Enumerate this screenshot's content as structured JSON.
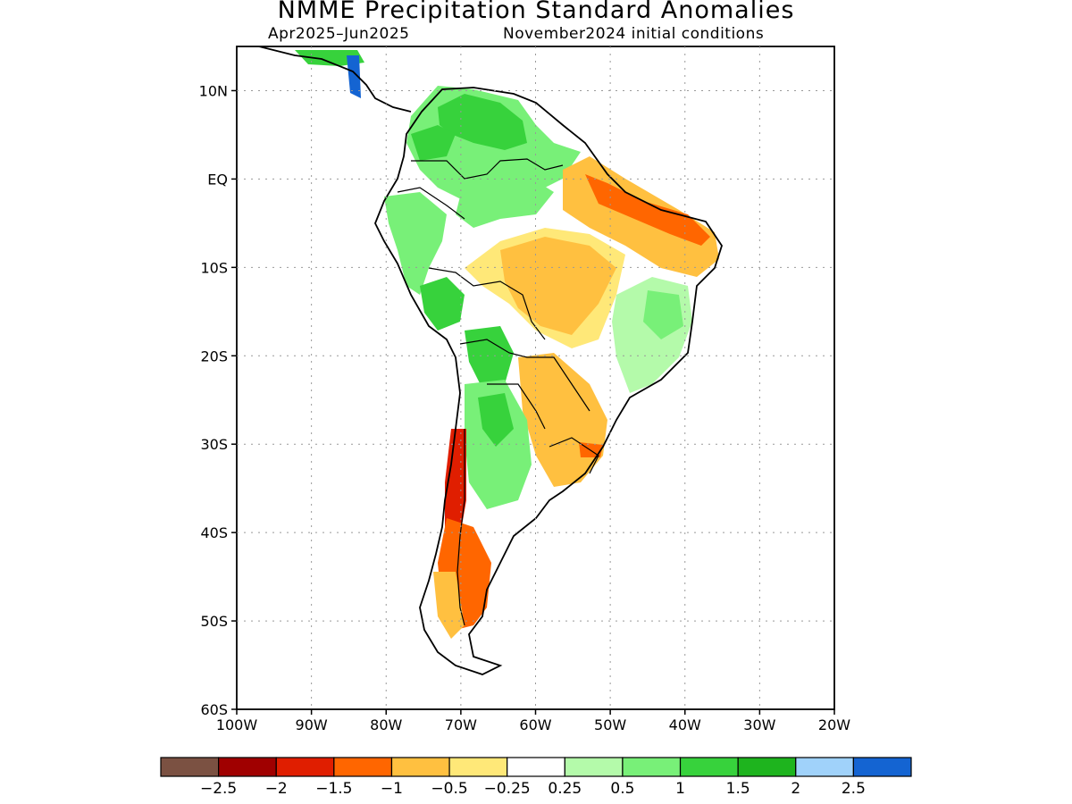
{
  "title": "NMME Precipitation Standard Anomalies",
  "subtitle_period": "Apr2025–Jun2025",
  "subtitle_ic": "November2024 initial conditions",
  "map": {
    "lon_range": [
      -100,
      -20
    ],
    "lat_range": [
      -60,
      15
    ],
    "lat_ticks": [
      {
        "value": 10,
        "label": "10N"
      },
      {
        "value": 0,
        "label": "EQ"
      },
      {
        "value": -10,
        "label": "10S"
      },
      {
        "value": -20,
        "label": "20S"
      },
      {
        "value": -30,
        "label": "30S"
      },
      {
        "value": -40,
        "label": "40S"
      },
      {
        "value": -50,
        "label": "50S"
      },
      {
        "value": -60,
        "label": "60S"
      }
    ],
    "lon_ticks": [
      {
        "value": -100,
        "label": "100W"
      },
      {
        "value": -90,
        "label": "90W"
      },
      {
        "value": -80,
        "label": "80W"
      },
      {
        "value": -70,
        "label": "70W"
      },
      {
        "value": -60,
        "label": "60W"
      },
      {
        "value": -50,
        "label": "50W"
      },
      {
        "value": -40,
        "label": "40W"
      },
      {
        "value": -30,
        "label": "30W"
      },
      {
        "value": -20,
        "label": "20W"
      }
    ],
    "grid": "dotted",
    "anomaly_regions": [
      {
        "name": "northern South America",
        "level": 1.5,
        "color": "#3cc83c"
      },
      {
        "name": "western Amazon",
        "level": 0.5,
        "color": "#78f078"
      },
      {
        "name": "northeast Brazil coast",
        "level": -1.5,
        "color": "#ff6600"
      },
      {
        "name": "central Brazil",
        "level": -0.5,
        "color": "#ffc040"
      },
      {
        "name": "eastern Brazil",
        "level": 1.0,
        "color": "#78f078"
      },
      {
        "name": "southern Brazil / Uruguay",
        "level": -0.5,
        "color": "#ffc040"
      },
      {
        "name": "northern Argentina",
        "level": 1.0,
        "color": "#78f078"
      },
      {
        "name": "central Chile",
        "level": -2.0,
        "color": "#e01e00"
      },
      {
        "name": "Patagonia",
        "level": -1.5,
        "color": "#ff6600"
      },
      {
        "name": "Central America Pacific",
        "level": 2.5,
        "color": "#1464d2"
      }
    ]
  },
  "colorbar": {
    "colors": [
      "#7b5142",
      "#a00000",
      "#e01e00",
      "#ff6600",
      "#ffc040",
      "#ffe878",
      "#ffffff",
      "#b4faaa",
      "#78f078",
      "#37d23c",
      "#1eb41e",
      "#a0d2fa",
      "#1464d2"
    ],
    "labels": [
      "−2.5",
      "−2",
      "−1.5",
      "−1",
      "−0.5",
      "−0.25",
      "0.25",
      "0.5",
      "1",
      "1.5",
      "2",
      "2.5"
    ]
  }
}
